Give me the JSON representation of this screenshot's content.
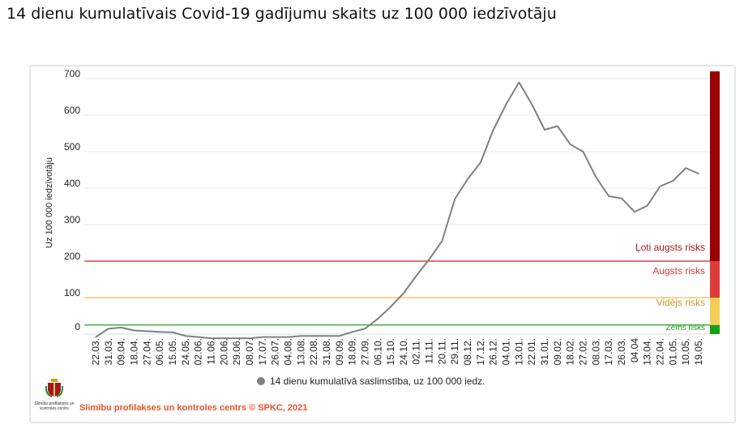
{
  "page_title": "14 dienu kumulatīvais Covid-19 gadījumu skaits uz 100 000 iedzīvotāju",
  "footer": "Slimību profilakses un kontroles centrs © SPKC, 2021",
  "logo_text": "Slimību profilakses un kontroles centrs",
  "chart_data": {
    "type": "line",
    "title": "14 dienu kumulatīvais Covid-19 gadījumu skaits uz 100 000 iedzīvotāju",
    "xlabel": "",
    "ylabel": "Uz 100 000 iedzīvotāju",
    "ylim": [
      0,
      720
    ],
    "yticks": [
      0,
      100,
      200,
      300,
      400,
      500,
      600,
      700
    ],
    "grid": true,
    "legend_position": "bottom",
    "categories": [
      "22.03.",
      "31.03.",
      "09.04.",
      "18.04.",
      "27.04.",
      "06.05.",
      "15.05.",
      "24.05.",
      "02.06.",
      "11.06.",
      "20.06.",
      "29.06.",
      "08.07.",
      "17.07.",
      "26.07.",
      "04.08.",
      "13.08.",
      "22.08.",
      "31.08.",
      "09.09.",
      "18.09.",
      "27.09.",
      "06.10.",
      "15.10.",
      "24.10.",
      "02.11.",
      "11.11.",
      "20.11.",
      "29.11.",
      "08.12.",
      "17.12.",
      "26.12.",
      "04.01.",
      "13.01.",
      "22.01.",
      "31.01.",
      "09.02.",
      "18.02.",
      "27.02.",
      "08.03.",
      "17.03.",
      "26.03.",
      "04.04",
      "13.04.",
      "22.04.",
      "01.05.",
      "10.05.",
      "19.05."
    ],
    "series": [
      {
        "name": "14 dienu kumulatīvā saslimstība, uz 100 000 iedz.",
        "color": "#808080",
        "values": [
          3,
          15,
          18,
          10,
          8,
          6,
          5,
          4,
          3,
          2,
          2,
          2,
          2,
          3,
          3,
          3,
          4,
          4,
          4,
          4,
          6,
          15,
          42,
          75,
          112,
          160,
          205,
          255,
          370,
          425,
          470,
          560,
          630,
          690,
          630,
          560,
          570,
          520,
          500,
          430,
          378,
          372,
          335,
          352,
          405,
          420,
          455,
          440
        ]
      }
    ],
    "risk_levels": [
      {
        "label": "Ļoti augsts risks",
        "from": 200,
        "to": 720,
        "color": "#9b0000",
        "text_color": "#a31c1c"
      },
      {
        "label": "Augsts risks",
        "from": 100,
        "to": 200,
        "color": "#dd3c3c",
        "text_color": "#d63a3a"
      },
      {
        "label": "Vidējs risks",
        "from": 25,
        "to": 100,
        "color": "#f3cd58",
        "text_color": "#c99a2a"
      },
      {
        "label": "Zems risks",
        "from": 0,
        "to": 25,
        "color": "#14a014",
        "text_color": "#2a9a2a"
      }
    ]
  }
}
